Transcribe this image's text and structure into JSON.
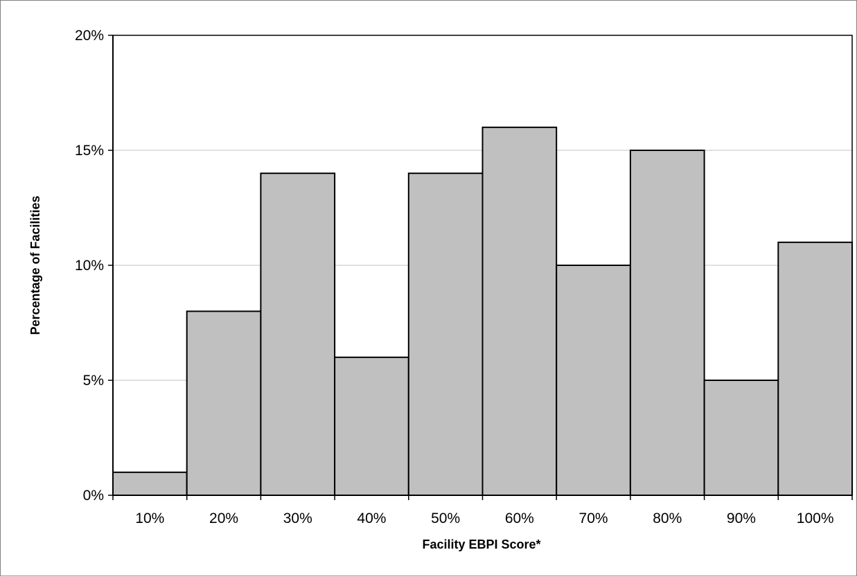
{
  "chart_data": {
    "type": "bar",
    "title": "",
    "xlabel": "Facility EBPI Score*",
    "ylabel": "Percentage of Facilities",
    "categories": [
      "10%",
      "20%",
      "30%",
      "40%",
      "50%",
      "60%",
      "70%",
      "80%",
      "90%",
      "100%"
    ],
    "values": [
      1,
      8,
      14,
      6,
      14,
      16,
      10,
      15,
      5,
      11
    ],
    "ylim": [
      0,
      20
    ],
    "yticks": [
      0,
      5,
      10,
      15,
      20
    ],
    "ytick_labels": [
      "0%",
      "5%",
      "10%",
      "15%",
      "20%"
    ],
    "grid": true,
    "legend": "none",
    "bar_color": "#c0c0c0",
    "edge_color": "#000000",
    "grid_color": "#c0c0c0"
  }
}
